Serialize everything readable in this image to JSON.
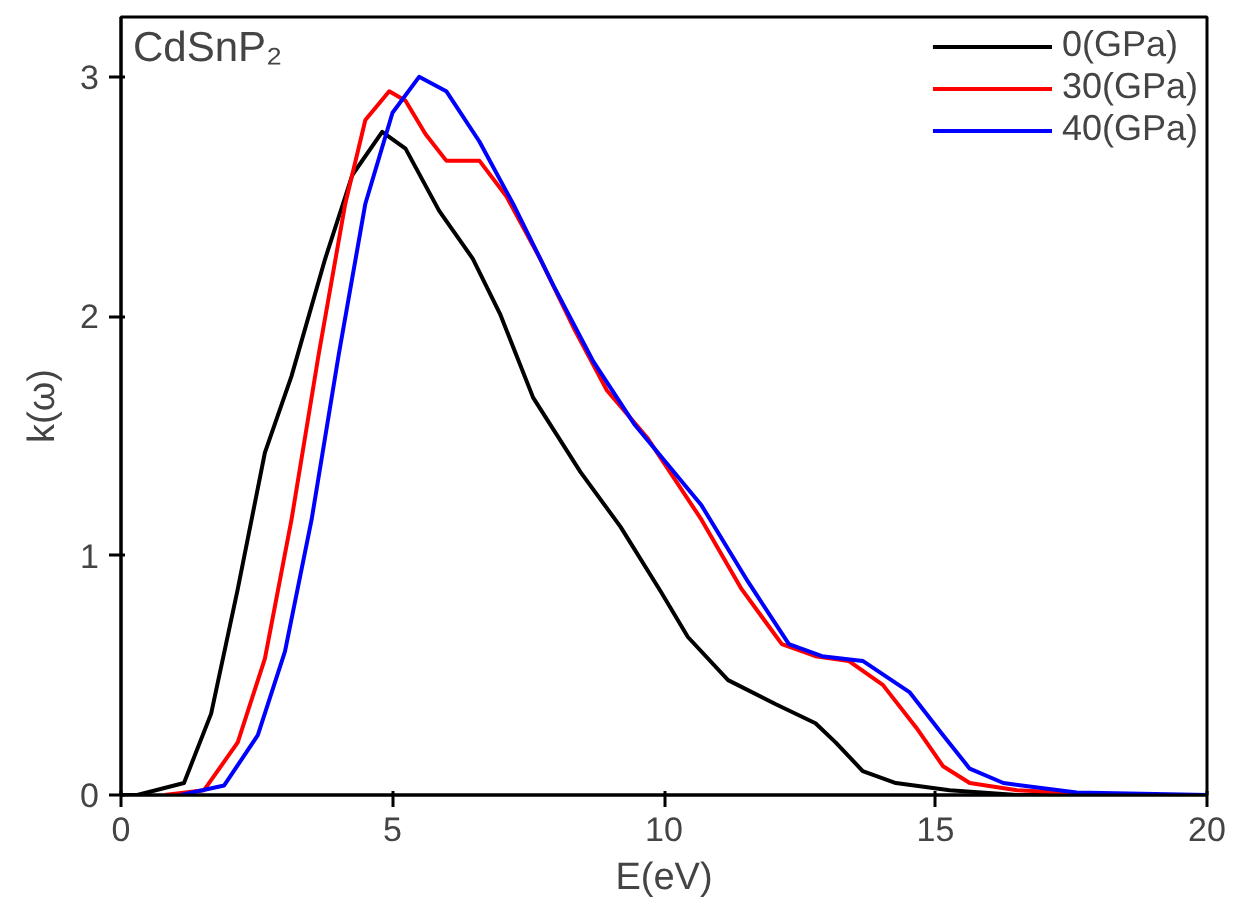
{
  "chart_data": {
    "type": "line",
    "title": "CdSnP₂",
    "xlabel": "E(eV)",
    "ylabel": "k(ω)",
    "xlim": [
      0,
      20
    ],
    "ylim": [
      0,
      3.25
    ],
    "xticks": [
      0,
      5,
      10,
      15,
      20
    ],
    "yticks": [
      0,
      1,
      2,
      3
    ],
    "grid": false,
    "legend": "top right",
    "line_style": "solid",
    "marker": "none",
    "series": [
      {
        "name": "0(GPa)",
        "color": "#000000",
        "x": [
          0,
          0.3,
          1.16,
          1.66,
          2.15,
          2.65,
          3.14,
          3.76,
          4.26,
          4.81,
          5.24,
          5.86,
          6.48,
          6.98,
          7.59,
          8.46,
          9.2,
          9.94,
          10.44,
          11.18,
          12.05,
          12.79,
          13.16,
          13.66,
          14.27,
          15.26,
          16.5,
          20
        ],
        "values": [
          0,
          0,
          0.05,
          0.34,
          0.86,
          1.43,
          1.75,
          2.24,
          2.59,
          2.77,
          2.7,
          2.44,
          2.24,
          2.01,
          1.66,
          1.35,
          1.12,
          0.85,
          0.66,
          0.48,
          0.38,
          0.3,
          0.22,
          0.1,
          0.05,
          0.02,
          0,
          0
        ]
      },
      {
        "name": "30(GPa)",
        "color": "#ff0000",
        "x": [
          0.8,
          1.53,
          2.15,
          2.65,
          3.14,
          3.64,
          4.13,
          4.5,
          4.94,
          5.24,
          5.61,
          5.99,
          6.6,
          7.1,
          7.72,
          8.34,
          8.95,
          9.7,
          10.69,
          11.43,
          12.17,
          12.79,
          13.4,
          14.03,
          14.65,
          15.14,
          15.63,
          16.5,
          18.3,
          20
        ],
        "values": [
          0,
          0.02,
          0.22,
          0.57,
          1.15,
          1.84,
          2.47,
          2.82,
          2.94,
          2.9,
          2.76,
          2.65,
          2.65,
          2.5,
          2.24,
          1.95,
          1.69,
          1.49,
          1.15,
          0.86,
          0.63,
          0.58,
          0.56,
          0.46,
          0.28,
          0.12,
          0.05,
          0.02,
          0,
          0
        ]
      },
      {
        "name": "40(GPa)",
        "color": "#0000ff",
        "x": [
          1.1,
          1.9,
          2.52,
          3.02,
          3.51,
          4.01,
          4.5,
          5.0,
          5.49,
          5.99,
          6.6,
          7.22,
          7.96,
          8.7,
          9.45,
          10.69,
          11.55,
          12.3,
          12.91,
          13.66,
          14.52,
          15.14,
          15.63,
          16.25,
          17.6,
          20
        ],
        "values": [
          0,
          0.04,
          0.25,
          0.6,
          1.15,
          1.84,
          2.47,
          2.85,
          3.0,
          2.94,
          2.73,
          2.47,
          2.13,
          1.81,
          1.55,
          1.21,
          0.89,
          0.63,
          0.58,
          0.56,
          0.43,
          0.25,
          0.11,
          0.05,
          0.01,
          0
        ]
      }
    ]
  }
}
